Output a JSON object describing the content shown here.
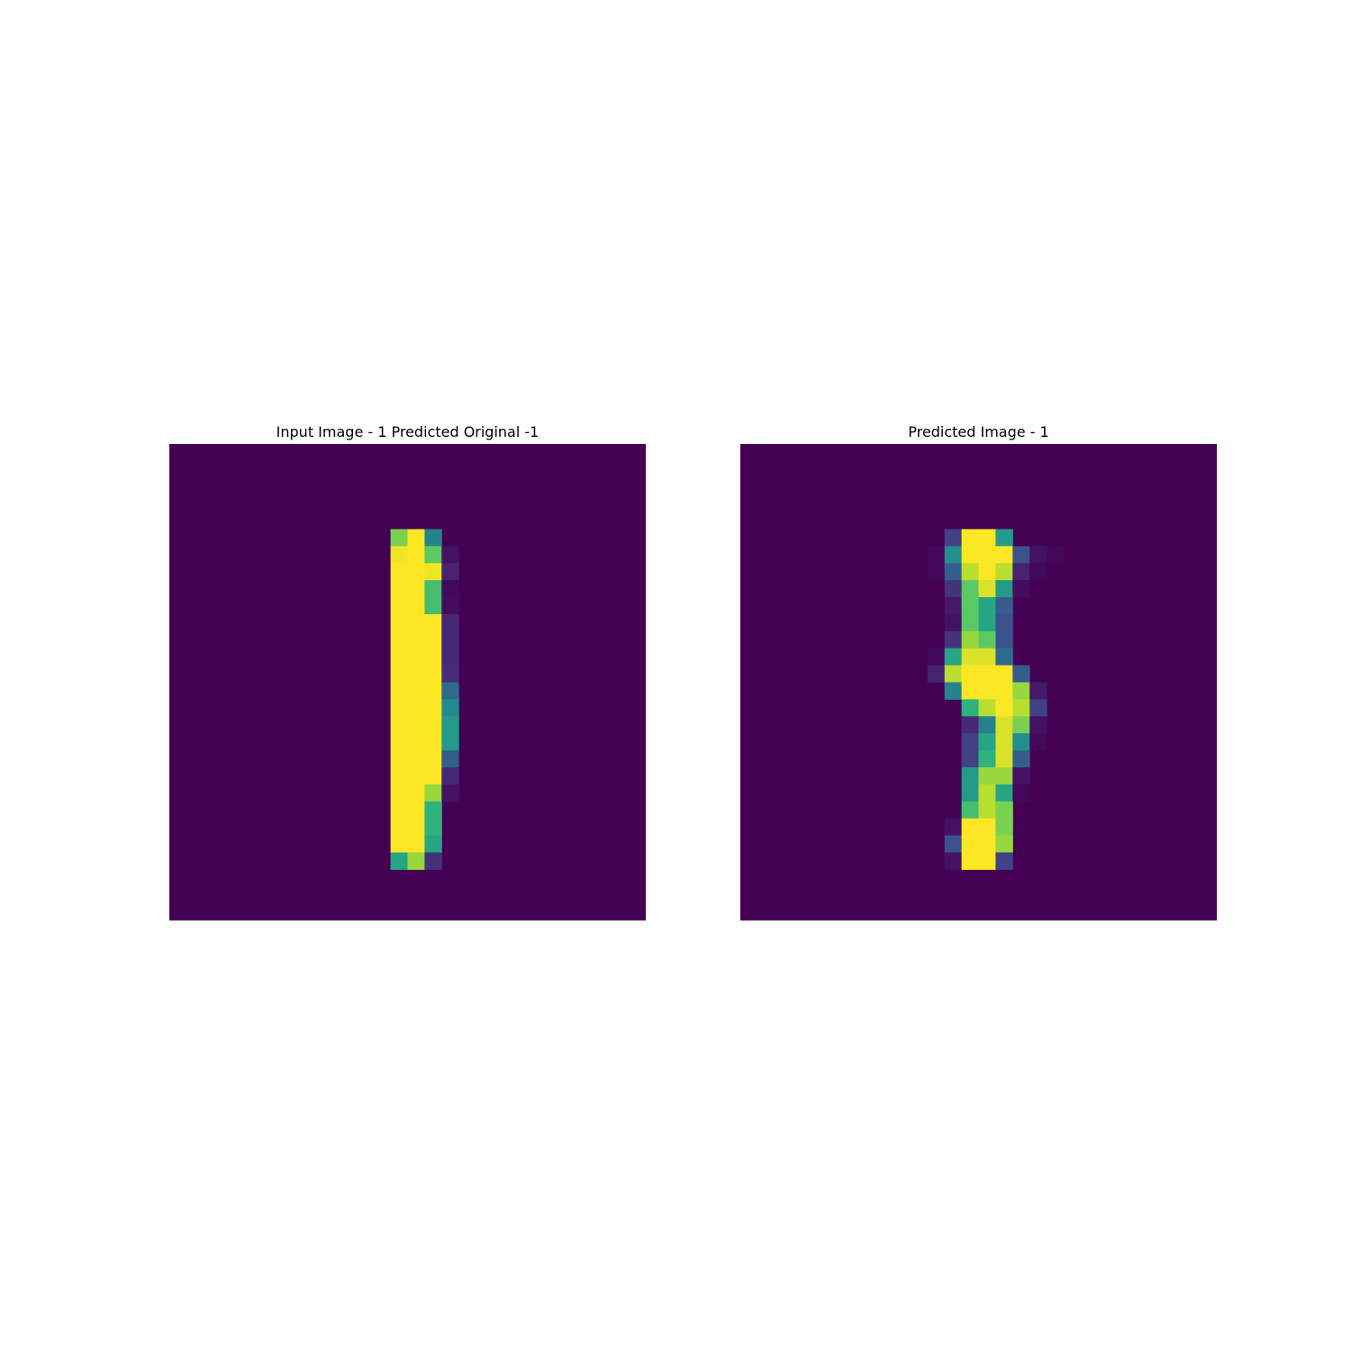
{
  "chart_data": [
    {
      "type": "heatmap",
      "title": "Input Image - 1 Predicted Original -1",
      "colormap": "viridis",
      "value_range": [
        0,
        1
      ],
      "grid": false,
      "axes_visible": false,
      "shape": [
        28,
        28
      ],
      "cells": [
        [
          5,
          13,
          0.8
        ],
        [
          5,
          14,
          1.0
        ],
        [
          5,
          15,
          0.45
        ],
        [
          6,
          13,
          0.98
        ],
        [
          6,
          14,
          1.0
        ],
        [
          6,
          15,
          0.75
        ],
        [
          6,
          16,
          0.05
        ],
        [
          7,
          13,
          1.0
        ],
        [
          7,
          14,
          1.0
        ],
        [
          7,
          15,
          0.98
        ],
        [
          7,
          16,
          0.1
        ],
        [
          8,
          13,
          1.0
        ],
        [
          8,
          14,
          1.0
        ],
        [
          8,
          15,
          0.7
        ],
        [
          8,
          16,
          0.02
        ],
        [
          9,
          13,
          1.0
        ],
        [
          9,
          14,
          1.0
        ],
        [
          9,
          15,
          0.7
        ],
        [
          9,
          16,
          0.03
        ],
        [
          10,
          13,
          1.0
        ],
        [
          10,
          14,
          1.0
        ],
        [
          10,
          15,
          1.0
        ],
        [
          10,
          16,
          0.12
        ],
        [
          11,
          13,
          1.0
        ],
        [
          11,
          14,
          1.0
        ],
        [
          11,
          15,
          1.0
        ],
        [
          11,
          16,
          0.12
        ],
        [
          12,
          13,
          1.0
        ],
        [
          12,
          14,
          1.0
        ],
        [
          12,
          15,
          1.0
        ],
        [
          12,
          16,
          0.12
        ],
        [
          13,
          13,
          1.0
        ],
        [
          13,
          14,
          1.0
        ],
        [
          13,
          15,
          1.0
        ],
        [
          13,
          16,
          0.13
        ],
        [
          14,
          13,
          1.0
        ],
        [
          14,
          14,
          1.0
        ],
        [
          14,
          15,
          1.0
        ],
        [
          14,
          16,
          0.35
        ],
        [
          15,
          13,
          1.0
        ],
        [
          15,
          14,
          1.0
        ],
        [
          15,
          15,
          1.0
        ],
        [
          15,
          16,
          0.48
        ],
        [
          16,
          13,
          1.0
        ],
        [
          16,
          14,
          1.0
        ],
        [
          16,
          15,
          1.0
        ],
        [
          16,
          16,
          0.55
        ],
        [
          17,
          13,
          1.0
        ],
        [
          17,
          14,
          1.0
        ],
        [
          17,
          15,
          1.0
        ],
        [
          17,
          16,
          0.55
        ],
        [
          18,
          13,
          1.0
        ],
        [
          18,
          14,
          1.0
        ],
        [
          18,
          15,
          1.0
        ],
        [
          18,
          16,
          0.3
        ],
        [
          19,
          13,
          1.0
        ],
        [
          19,
          14,
          1.0
        ],
        [
          19,
          15,
          1.0
        ],
        [
          19,
          16,
          0.12
        ],
        [
          20,
          13,
          1.0
        ],
        [
          20,
          14,
          1.0
        ],
        [
          20,
          15,
          0.85
        ],
        [
          20,
          16,
          0.05
        ],
        [
          21,
          13,
          1.0
        ],
        [
          21,
          14,
          1.0
        ],
        [
          21,
          15,
          0.65
        ],
        [
          22,
          13,
          1.0
        ],
        [
          22,
          14,
          1.0
        ],
        [
          22,
          15,
          0.65
        ],
        [
          23,
          13,
          1.0
        ],
        [
          23,
          14,
          1.0
        ],
        [
          23,
          15,
          0.6
        ],
        [
          24,
          13,
          0.6
        ],
        [
          24,
          14,
          0.85
        ],
        [
          24,
          15,
          0.15
        ]
      ]
    },
    {
      "type": "heatmap",
      "title": "Predicted Image - 1",
      "colormap": "viridis",
      "value_range": [
        0,
        1
      ],
      "grid": false,
      "axes_visible": false,
      "shape": [
        28,
        28
      ],
      "cells": [
        [
          5,
          12,
          0.2
        ],
        [
          5,
          13,
          1.0
        ],
        [
          5,
          14,
          1.0
        ],
        [
          5,
          15,
          0.55
        ],
        [
          6,
          11,
          0.02
        ],
        [
          6,
          12,
          0.5
        ],
        [
          6,
          13,
          1.0
        ],
        [
          6,
          14,
          1.0
        ],
        [
          6,
          15,
          1.0
        ],
        [
          6,
          16,
          0.25
        ],
        [
          6,
          17,
          0.05
        ],
        [
          6,
          18,
          0.02
        ],
        [
          7,
          11,
          0.02
        ],
        [
          7,
          12,
          0.3
        ],
        [
          7,
          13,
          0.9
        ],
        [
          7,
          14,
          1.0
        ],
        [
          7,
          15,
          0.9
        ],
        [
          7,
          16,
          0.1
        ],
        [
          7,
          17,
          0.02
        ],
        [
          8,
          12,
          0.15
        ],
        [
          8,
          13,
          0.75
        ],
        [
          8,
          14,
          0.95
        ],
        [
          8,
          15,
          0.55
        ],
        [
          8,
          16,
          0.03
        ],
        [
          9,
          12,
          0.07
        ],
        [
          9,
          13,
          0.75
        ],
        [
          9,
          14,
          0.6
        ],
        [
          9,
          15,
          0.3
        ],
        [
          10,
          12,
          0.05
        ],
        [
          10,
          13,
          0.75
        ],
        [
          10,
          14,
          0.6
        ],
        [
          10,
          15,
          0.25
        ],
        [
          11,
          12,
          0.15
        ],
        [
          11,
          13,
          0.85
        ],
        [
          11,
          14,
          0.75
        ],
        [
          11,
          15,
          0.25
        ],
        [
          12,
          11,
          0.02
        ],
        [
          12,
          12,
          0.6
        ],
        [
          12,
          13,
          0.95
        ],
        [
          12,
          14,
          0.95
        ],
        [
          12,
          15,
          0.35
        ],
        [
          13,
          11,
          0.1
        ],
        [
          13,
          12,
          0.9
        ],
        [
          13,
          13,
          1.0
        ],
        [
          13,
          14,
          1.0
        ],
        [
          13,
          15,
          1.0
        ],
        [
          13,
          16,
          0.3
        ],
        [
          14,
          12,
          0.45
        ],
        [
          14,
          13,
          1.0
        ],
        [
          14,
          14,
          1.0
        ],
        [
          14,
          15,
          1.0
        ],
        [
          14,
          16,
          0.85
        ],
        [
          14,
          17,
          0.07
        ],
        [
          15,
          13,
          0.65
        ],
        [
          15,
          14,
          0.9
        ],
        [
          15,
          15,
          1.0
        ],
        [
          15,
          16,
          0.9
        ],
        [
          15,
          17,
          0.2
        ],
        [
          16,
          13,
          0.12
        ],
        [
          16,
          14,
          0.45
        ],
        [
          16,
          15,
          0.95
        ],
        [
          16,
          16,
          0.8
        ],
        [
          16,
          17,
          0.05
        ],
        [
          17,
          13,
          0.2
        ],
        [
          17,
          14,
          0.6
        ],
        [
          17,
          15,
          0.95
        ],
        [
          17,
          16,
          0.5
        ],
        [
          17,
          17,
          0.02
        ],
        [
          18,
          13,
          0.2
        ],
        [
          18,
          14,
          0.65
        ],
        [
          18,
          15,
          0.95
        ],
        [
          18,
          16,
          0.3
        ],
        [
          19,
          13,
          0.55
        ],
        [
          19,
          14,
          0.85
        ],
        [
          19,
          15,
          0.85
        ],
        [
          19,
          16,
          0.05
        ],
        [
          20,
          13,
          0.55
        ],
        [
          20,
          14,
          0.9
        ],
        [
          20,
          15,
          0.6
        ],
        [
          20,
          16,
          0.02
        ],
        [
          21,
          13,
          0.7
        ],
        [
          21,
          14,
          0.9
        ],
        [
          21,
          15,
          0.8
        ],
        [
          22,
          12,
          0.05
        ],
        [
          22,
          13,
          1.0
        ],
        [
          22,
          14,
          1.0
        ],
        [
          22,
          15,
          0.8
        ],
        [
          23,
          12,
          0.25
        ],
        [
          23,
          13,
          1.0
        ],
        [
          23,
          14,
          1.0
        ],
        [
          23,
          15,
          0.85
        ],
        [
          24,
          12,
          0.05
        ],
        [
          24,
          13,
          1.0
        ],
        [
          24,
          14,
          1.0
        ],
        [
          24,
          15,
          0.2
        ]
      ]
    }
  ]
}
